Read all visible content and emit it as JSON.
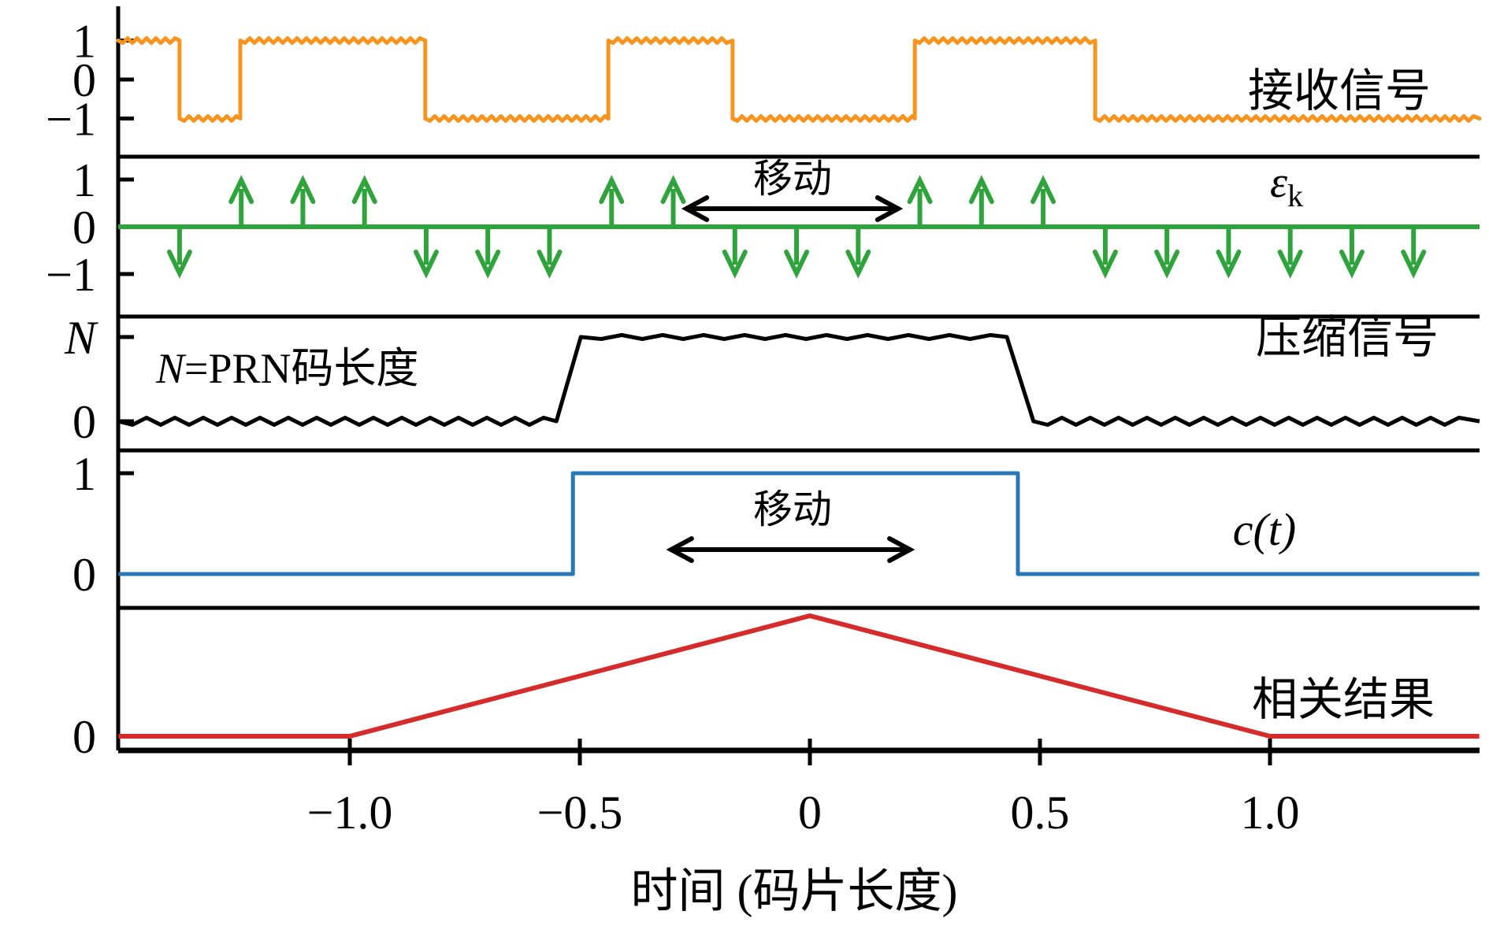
{
  "figure": {
    "xlabel": "时间 (码片长度)",
    "x_ticks": [
      {
        "t": -1.0,
        "label": "−1.0"
      },
      {
        "t": -0.5,
        "label": "−0.5"
      },
      {
        "t": 0,
        "label": "0"
      },
      {
        "t": 0.5,
        "label": "0.5"
      },
      {
        "t": 1.0,
        "label": "1.0"
      }
    ],
    "x_range": [
      -1.503,
      1.455
    ]
  },
  "labels": {
    "received": "接收信号",
    "epsilon_base": "ε",
    "epsilon_sub": "k",
    "compressed": "压缩信号",
    "code": "c(t)",
    "correlation": "相关结果",
    "n_italic": "N",
    "n_rest": "=PRN码长度",
    "move_top": "移动",
    "move_bottom": "移动"
  },
  "colors": {
    "received": "#f7941e",
    "epsilon": "#2fa43c",
    "compressed": "#000000",
    "code": "#2878b5",
    "correlation": "#d62b2b",
    "annotation": "#000000"
  },
  "panels": [
    {
      "id": "received",
      "yticks": [
        {
          "value": 1,
          "label": "1"
        },
        {
          "value": 0,
          "label": "0"
        },
        {
          "value": -1,
          "label": "−1"
        }
      ]
    },
    {
      "id": "epsilon",
      "yticks": [
        {
          "value": 1,
          "label": "1"
        },
        {
          "value": 0,
          "label": "0"
        },
        {
          "value": -1,
          "label": "−1"
        }
      ]
    },
    {
      "id": "compressed",
      "yticks": [
        {
          "value": 1,
          "label": "N"
        },
        {
          "value": 0,
          "label": "0"
        }
      ]
    },
    {
      "id": "code",
      "yticks": [
        {
          "value": 1,
          "label": "1"
        },
        {
          "value": 0,
          "label": "0"
        }
      ]
    },
    {
      "id": "correlation",
      "yticks": [
        {
          "value": 0,
          "label": "0"
        }
      ]
    }
  ],
  "chart_data": [
    {
      "panel": "received",
      "type": "line",
      "title": "接收信号",
      "style": "noisy-square-wave",
      "initial_level": 1,
      "levels": [
        1,
        -1
      ],
      "transitions_t": [
        -1.37,
        -1.238,
        -0.836,
        -0.438,
        -0.168,
        0.228,
        0.62
      ],
      "x_range": [
        -1.503,
        1.455
      ],
      "ylim": [
        -1.5,
        2.0
      ]
    },
    {
      "panel": "epsilon",
      "type": "stem",
      "title": "ε_k",
      "samples": [
        {
          "t": -1.37,
          "v": -1
        },
        {
          "t": -1.236,
          "v": 1
        },
        {
          "t": -1.102,
          "v": 1
        },
        {
          "t": -0.968,
          "v": 1
        },
        {
          "t": -0.834,
          "v": -1
        },
        {
          "t": -0.7,
          "v": -1
        },
        {
          "t": -0.566,
          "v": -1
        },
        {
          "t": -0.431,
          "v": 1
        },
        {
          "t": -0.297,
          "v": 1
        },
        {
          "t": -0.163,
          "v": -1
        },
        {
          "t": -0.029,
          "v": -1
        },
        {
          "t": 0.105,
          "v": -1
        },
        {
          "t": 0.239,
          "v": 1
        },
        {
          "t": 0.373,
          "v": 1
        },
        {
          "t": 0.507,
          "v": 1
        },
        {
          "t": 0.642,
          "v": -1
        },
        {
          "t": 0.776,
          "v": -1
        },
        {
          "t": 0.91,
          "v": -1
        },
        {
          "t": 1.044,
          "v": -1
        },
        {
          "t": 1.178,
          "v": -1
        },
        {
          "t": 1.312,
          "v": -1
        }
      ],
      "ylim": [
        -1.6,
        1.6
      ]
    },
    {
      "panel": "compressed",
      "type": "line",
      "title": "压缩信号",
      "style": "noisy",
      "y_scale": "N",
      "points": [
        [
          -1.503,
          0
        ],
        [
          -0.551,
          0
        ],
        [
          -0.498,
          1
        ],
        [
          0.428,
          1
        ],
        [
          0.486,
          0
        ],
        [
          1.455,
          0
        ]
      ],
      "annotation": "N=PRN码长度"
    },
    {
      "panel": "code",
      "type": "step",
      "title": "c(t)",
      "points": [
        [
          -1.503,
          0
        ],
        [
          -0.515,
          0
        ],
        [
          -0.515,
          1
        ],
        [
          0.452,
          1
        ],
        [
          0.452,
          0
        ],
        [
          1.455,
          0
        ]
      ]
    },
    {
      "panel": "correlation",
      "type": "line",
      "title": "相关结果",
      "points": [
        [
          -1.503,
          0
        ],
        [
          -1.0,
          0
        ],
        [
          0,
          1
        ],
        [
          1.0,
          0
        ],
        [
          1.455,
          0
        ]
      ]
    }
  ],
  "annotations": {
    "move_top": {
      "label": "移动",
      "t_from": -0.272,
      "t_to": 0.195
    },
    "move_bottom": {
      "label": "移动",
      "t_from": -0.305,
      "t_to": 0.221
    },
    "n_definition": "N=PRN码长度"
  }
}
